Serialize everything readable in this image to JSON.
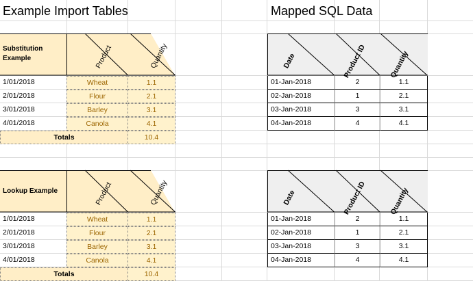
{
  "left_title": "Example Import Tables",
  "right_title": "Mapped SQL Data",
  "import_tables": [
    {
      "label": [
        "Substitution",
        "Example"
      ],
      "col_product": "Product",
      "col_quantity": "Quantity",
      "rows": [
        {
          "date": "1/01/2018",
          "product": "Wheat",
          "quantity": "1.1"
        },
        {
          "date": "2/01/2018",
          "product": "Flour",
          "quantity": "2.1"
        },
        {
          "date": "3/01/2018",
          "product": "Barley",
          "quantity": "3.1"
        },
        {
          "date": "4/01/2018",
          "product": "Canola",
          "quantity": "4.1"
        }
      ],
      "totals_label": "Totals",
      "totals_value": "10.4"
    },
    {
      "label": [
        "Lookup Example",
        ""
      ],
      "col_product": "Product",
      "col_quantity": "Quantity",
      "rows": [
        {
          "date": "1/01/2018",
          "product": "Wheat",
          "quantity": "1.1"
        },
        {
          "date": "2/01/2018",
          "product": "Flour",
          "quantity": "2.1"
        },
        {
          "date": "3/01/2018",
          "product": "Barley",
          "quantity": "3.1"
        },
        {
          "date": "4/01/2018",
          "product": "Canola",
          "quantity": "4.1"
        }
      ],
      "totals_label": "Totals",
      "totals_value": "10.4"
    }
  ],
  "sql_tables": [
    {
      "col_date": "Date",
      "col_product_id": "Product ID",
      "col_quantity": "Quantity",
      "rows": [
        {
          "date": "01-Jan-2018",
          "product_id": "2",
          "quantity": "1.1"
        },
        {
          "date": "02-Jan-2018",
          "product_id": "1",
          "quantity": "2.1"
        },
        {
          "date": "03-Jan-2018",
          "product_id": "3",
          "quantity": "3.1"
        },
        {
          "date": "04-Jan-2018",
          "product_id": "4",
          "quantity": "4.1"
        }
      ]
    },
    {
      "col_date": "Date",
      "col_product_id": "Product ID",
      "col_quantity": "Quantity",
      "rows": [
        {
          "date": "01-Jan-2018",
          "product_id": "2",
          "quantity": "1.1"
        },
        {
          "date": "02-Jan-2018",
          "product_id": "1",
          "quantity": "2.1"
        },
        {
          "date": "03-Jan-2018",
          "product_id": "3",
          "quantity": "3.1"
        },
        {
          "date": "04-Jan-2018",
          "product_id": "4",
          "quantity": "4.1"
        }
      ]
    }
  ],
  "colors": {
    "header_fill": "#ffeec7",
    "cell_yellow": "#fff2cc",
    "yellow_text": "#9c6500",
    "sql_header_fill": "#efefef",
    "gridline": "#d9d9d9"
  }
}
